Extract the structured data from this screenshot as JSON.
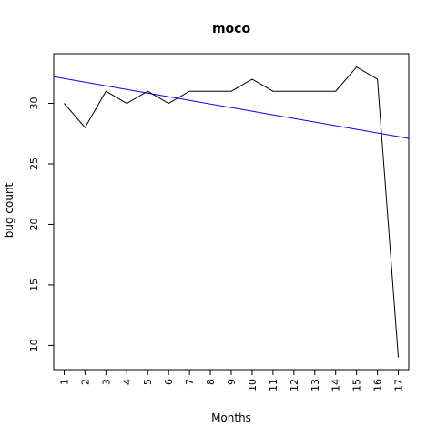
{
  "chart_data": {
    "type": "line",
    "title": "moco",
    "xlabel": "Months",
    "ylabel": "bug count",
    "x": [
      1,
      2,
      3,
      4,
      5,
      6,
      7,
      8,
      9,
      10,
      11,
      12,
      13,
      14,
      15,
      16,
      17
    ],
    "x_tick_labels": [
      "1",
      "2",
      "3",
      "4",
      "5",
      "6",
      "7",
      "8",
      "9",
      "10",
      "11",
      "12",
      "13",
      "14",
      "15",
      "16",
      "17"
    ],
    "y_ticks": [
      10,
      15,
      20,
      25,
      30
    ],
    "y_tick_labels": [
      "10",
      "15",
      "20",
      "25",
      "30"
    ],
    "xlim": [
      0.5,
      17.5
    ],
    "ylim": [
      8.0,
      34.1
    ],
    "grid": false,
    "series": [
      {
        "values": [
          30,
          28,
          31,
          30,
          31,
          30,
          31,
          31,
          31,
          32,
          31,
          31,
          31,
          31,
          33,
          32,
          9
        ],
        "color": "#000000"
      }
    ],
    "trend_line": {
      "color": "#0000ff",
      "y_at_xlim": [
        32.2,
        27.1
      ]
    }
  }
}
